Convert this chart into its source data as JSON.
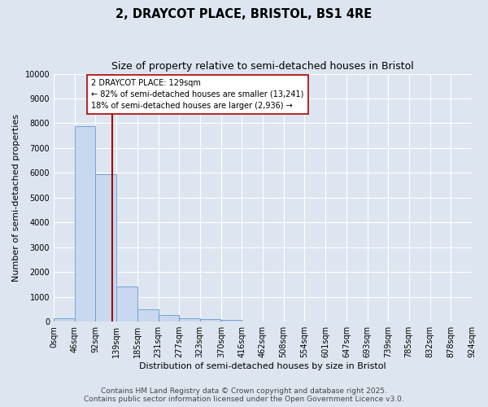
{
  "title": "2, DRAYCOT PLACE, BRISTOL, BS1 4RE",
  "subtitle": "Size of property relative to semi-detached houses in Bristol",
  "xlabel": "Distribution of semi-detached houses by size in Bristol",
  "ylabel": "Number of semi-detached properties",
  "property_size": 129,
  "pct_smaller": 82,
  "num_smaller": 13241,
  "pct_larger": 18,
  "num_larger": 2936,
  "annotation_label": "2 DRAYCOT PLACE: 129sqm",
  "bin_edges": [
    0,
    46,
    92,
    139,
    185,
    231,
    277,
    323,
    370,
    416,
    462,
    508,
    554,
    601,
    647,
    693,
    739,
    785,
    832,
    878,
    924
  ],
  "bin_labels": [
    "0sqm",
    "46sqm",
    "92sqm",
    "139sqm",
    "185sqm",
    "231sqm",
    "277sqm",
    "323sqm",
    "370sqm",
    "416sqm",
    "462sqm",
    "508sqm",
    "554sqm",
    "601sqm",
    "647sqm",
    "693sqm",
    "739sqm",
    "785sqm",
    "832sqm",
    "878sqm",
    "924sqm"
  ],
  "bar_heights": [
    150,
    7900,
    5950,
    1400,
    480,
    250,
    130,
    110,
    60,
    15,
    5,
    3,
    2,
    1,
    1,
    0,
    0,
    0,
    0,
    0
  ],
  "bar_color": "#c8d8ee",
  "bar_edgecolor": "#6699cc",
  "red_line_color": "#aa0000",
  "ylim": [
    0,
    10000
  ],
  "yticks": [
    0,
    1000,
    2000,
    3000,
    4000,
    5000,
    6000,
    7000,
    8000,
    9000,
    10000
  ],
  "background_color": "#dde6f0",
  "grid_color": "#ffffff",
  "annotation_box_facecolor": "#ffffff",
  "annotation_box_edgecolor": "#aa0000",
  "footer_line1": "Contains HM Land Registry data © Crown copyright and database right 2025.",
  "footer_line2": "Contains public sector information licensed under the Open Government Licence v3.0.",
  "title_fontsize": 10.5,
  "subtitle_fontsize": 9,
  "axis_label_fontsize": 8,
  "tick_fontsize": 7,
  "annotation_fontsize": 7,
  "footer_fontsize": 6.5
}
